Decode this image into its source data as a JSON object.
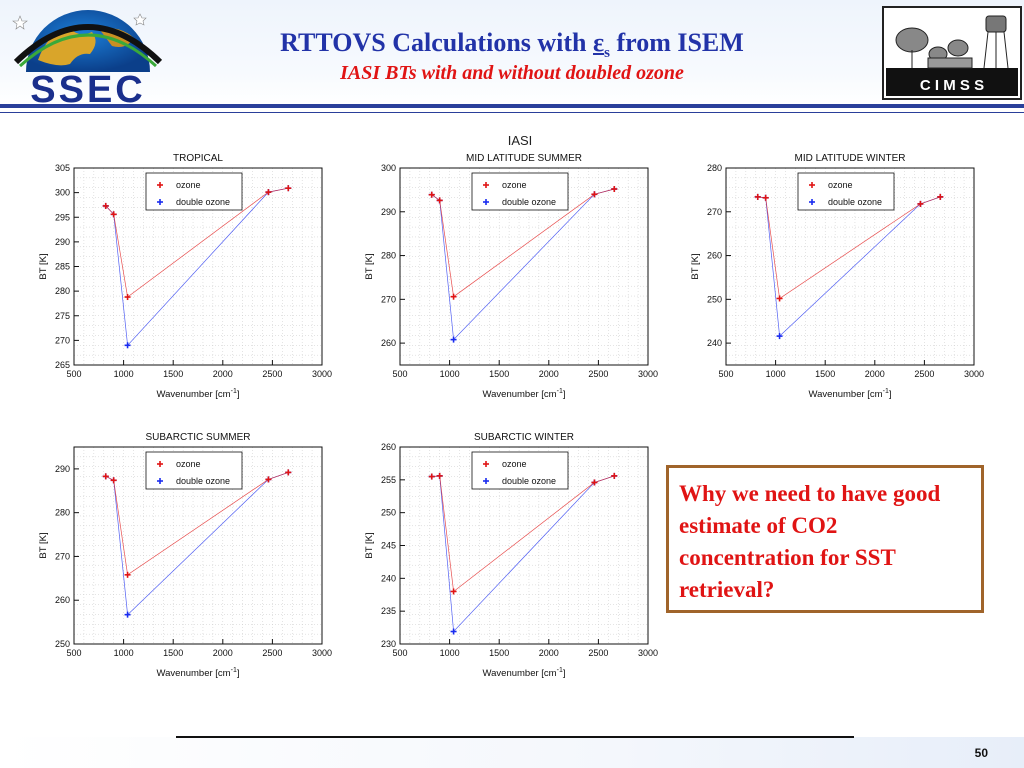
{
  "slide": {
    "title_pre": "RTTOVS Calculations with ",
    "title_eps": "ε",
    "title_eps_sub": "s",
    "title_post": " from ISEM",
    "subtitle": "IASI BTs with and without doubled ozone",
    "iasi_label": "IASI",
    "callout": "Why we need to have good estimate of CO2 concentration for SST retrieval?",
    "page_number": "50",
    "ssec_logo_text": "SSEC",
    "cimss_logo_text": "C I M S S"
  },
  "colors": {
    "title": "#2233a8",
    "subtitle": "#e01414",
    "ozone": "#e01414",
    "double_ozone": "#1a2cf0",
    "callout_border": "#a0642a"
  },
  "chart_data": [
    {
      "type": "line",
      "title": "TROPICAL",
      "xlabel": "Wavenumber [cm",
      "xlabel_sup": "-1",
      "xlabel_end": "]",
      "ylabel": "BT [K]",
      "xlim": [
        500,
        3000
      ],
      "ylim": [
        265,
        305
      ],
      "xticks": [
        500,
        1000,
        1500,
        2000,
        2500,
        3000
      ],
      "yticks": [
        265,
        270,
        275,
        280,
        285,
        290,
        295,
        300,
        305
      ],
      "grid": true,
      "legend_position": "top-right",
      "series": [
        {
          "name": "ozone",
          "x": [
            820,
            900,
            1040,
            2460,
            2660
          ],
          "y": [
            297.3,
            295.6,
            278.8,
            300.1,
            300.9
          ]
        },
        {
          "name": "double ozone",
          "x": [
            820,
            900,
            1040,
            2460,
            2660
          ],
          "y": [
            297.3,
            295.6,
            269.0,
            300.1,
            300.9
          ]
        }
      ]
    },
    {
      "type": "line",
      "title": "MID LATITUDE SUMMER",
      "xlabel": "Wavenumber [cm",
      "xlabel_sup": "-1",
      "xlabel_end": "]",
      "ylabel": "BT [K]",
      "xlim": [
        500,
        3000
      ],
      "ylim": [
        255,
        300
      ],
      "xticks": [
        500,
        1000,
        1500,
        2000,
        2500,
        3000
      ],
      "yticks": [
        260,
        270,
        280,
        290,
        300
      ],
      "grid": true,
      "legend_position": "top-right",
      "series": [
        {
          "name": "ozone",
          "x": [
            820,
            900,
            1040,
            2460,
            2660
          ],
          "y": [
            293.9,
            292.6,
            270.6,
            294.0,
            295.2
          ]
        },
        {
          "name": "double ozone",
          "x": [
            820,
            900,
            1040,
            2460,
            2660
          ],
          "y": [
            293.9,
            292.6,
            260.8,
            294.0,
            295.2
          ]
        }
      ]
    },
    {
      "type": "line",
      "title": "MID LATITUDE WINTER",
      "xlabel": "Wavenumber [cm",
      "xlabel_sup": "-1",
      "xlabel_end": "]",
      "ylabel": "BT [K]",
      "xlim": [
        500,
        3000
      ],
      "ylim": [
        235,
        280
      ],
      "xticks": [
        500,
        1000,
        1500,
        2000,
        2500,
        3000
      ],
      "yticks": [
        240,
        250,
        260,
        270,
        280
      ],
      "grid": true,
      "legend_position": "top-right",
      "series": [
        {
          "name": "ozone",
          "x": [
            820,
            900,
            1040,
            2460,
            2660
          ],
          "y": [
            273.4,
            273.2,
            250.2,
            271.8,
            273.4
          ]
        },
        {
          "name": "double ozone",
          "x": [
            820,
            900,
            1040,
            2460,
            2660
          ],
          "y": [
            273.4,
            273.2,
            241.6,
            271.8,
            273.4
          ]
        }
      ]
    },
    {
      "type": "line",
      "title": "SUBARCTIC SUMMER",
      "xlabel": "Wavenumber [cm",
      "xlabel_sup": "-1",
      "xlabel_end": "]",
      "ylabel": "BT [K]",
      "xlim": [
        500,
        3000
      ],
      "ylim": [
        250,
        295
      ],
      "xticks": [
        500,
        1000,
        1500,
        2000,
        2500,
        3000
      ],
      "yticks": [
        250,
        260,
        270,
        280,
        290
      ],
      "grid": true,
      "legend_position": "top-right",
      "series": [
        {
          "name": "ozone",
          "x": [
            820,
            900,
            1040,
            2460,
            2660
          ],
          "y": [
            288.3,
            287.4,
            265.8,
            287.6,
            289.2
          ]
        },
        {
          "name": "double ozone",
          "x": [
            820,
            900,
            1040,
            2460,
            2660
          ],
          "y": [
            288.3,
            287.4,
            256.7,
            287.6,
            289.2
          ]
        }
      ]
    },
    {
      "type": "line",
      "title": "SUBARCTIC WINTER",
      "xlabel": "Wavenumber [cm",
      "xlabel_sup": "-1",
      "xlabel_end": "]",
      "ylabel": "BT [K]",
      "xlim": [
        500,
        3000
      ],
      "ylim": [
        230,
        260
      ],
      "xticks": [
        500,
        1000,
        1500,
        2000,
        2500,
        3000
      ],
      "yticks": [
        230,
        235,
        240,
        245,
        250,
        255,
        260
      ],
      "grid": true,
      "legend_position": "top-right",
      "series": [
        {
          "name": "ozone",
          "x": [
            820,
            900,
            1040,
            2460,
            2660
          ],
          "y": [
            255.5,
            255.6,
            238.0,
            254.6,
            255.6
          ]
        },
        {
          "name": "double ozone",
          "x": [
            820,
            900,
            1040,
            2460,
            2660
          ],
          "y": [
            255.5,
            255.6,
            231.9,
            254.6,
            255.6
          ]
        }
      ]
    }
  ]
}
